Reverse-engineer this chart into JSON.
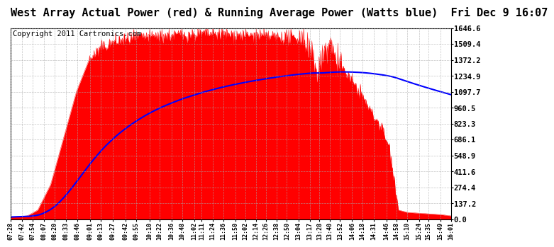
{
  "title": "West Array Actual Power (red) & Running Average Power (Watts blue)  Fri Dec 9 16:07",
  "copyright": "Copyright 2011 Cartronics.com",
  "ytick_labels": [
    "0.0",
    "137.2",
    "274.4",
    "411.6",
    "548.9",
    "686.1",
    "823.3",
    "960.5",
    "1097.7",
    "1234.9",
    "1372.2",
    "1509.4",
    "1646.6"
  ],
  "ytick_values": [
    0.0,
    137.2,
    274.4,
    411.6,
    548.9,
    686.1,
    823.3,
    960.5,
    1097.7,
    1234.9,
    1372.2,
    1509.4,
    1646.6
  ],
  "ymax": 1646.6,
  "ymin": 0.0,
  "background_color": "#ffffff",
  "red_color": "#ff0000",
  "blue_color": "#0000ff",
  "grid_color": "#aaaaaa",
  "title_fontsize": 11,
  "copyright_fontsize": 7.5,
  "xtick_labels": [
    "07:28",
    "07:42",
    "07:54",
    "08:07",
    "08:20",
    "08:33",
    "08:46",
    "09:01",
    "09:13",
    "09:27",
    "09:42",
    "09:55",
    "10:10",
    "10:22",
    "10:36",
    "10:48",
    "11:02",
    "11:11",
    "11:24",
    "11:36",
    "11:50",
    "12:02",
    "12:14",
    "12:26",
    "12:38",
    "12:50",
    "13:04",
    "13:17",
    "13:28",
    "13:40",
    "13:52",
    "14:06",
    "14:18",
    "14:31",
    "14:46",
    "14:58",
    "15:10",
    "15:24",
    "15:35",
    "15:49",
    "16:01"
  ]
}
